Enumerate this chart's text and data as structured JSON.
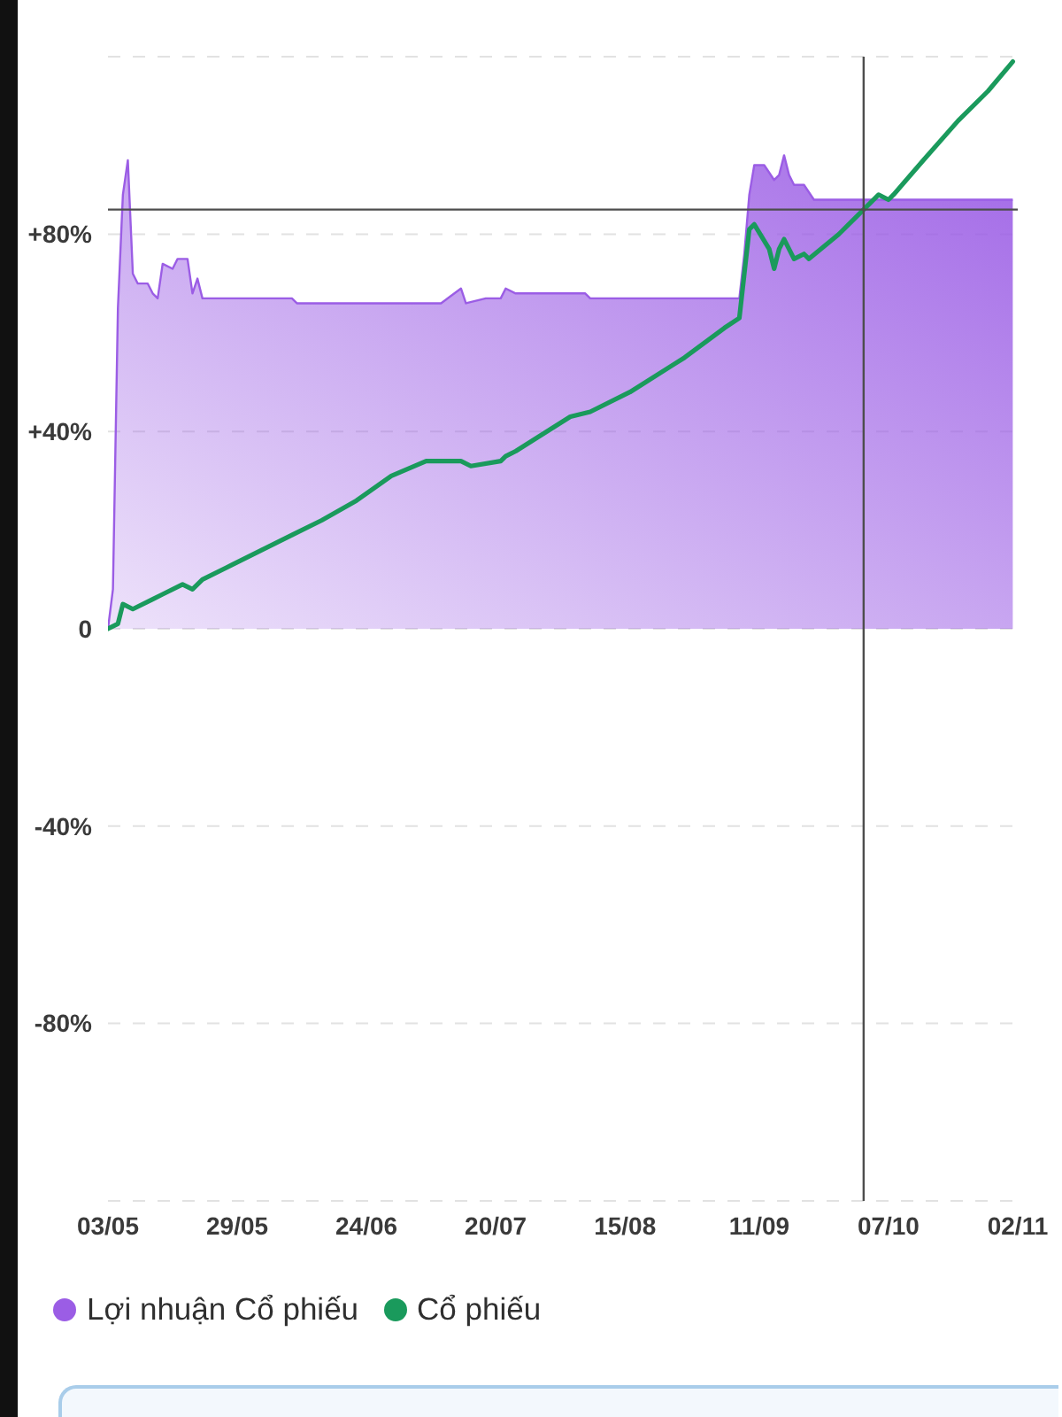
{
  "chart_data": {
    "type": "area",
    "xlim": [
      "--05-03",
      "--11-02"
    ],
    "xticks": [
      {
        "value": "--05-03",
        "label": "03/05"
      },
      {
        "value": "--05-29",
        "label": "29/05"
      },
      {
        "value": "--06-24",
        "label": "24/06"
      },
      {
        "value": "--07-20",
        "label": "20/07"
      },
      {
        "value": "--08-15",
        "label": "15/08"
      },
      {
        "value": "--09-11",
        "label": "11/09"
      },
      {
        "value": "--10-07",
        "label": "07/10"
      },
      {
        "value": "--11-02",
        "label": "02/11"
      }
    ],
    "ylim": [
      -116,
      116
    ],
    "yticks": [
      {
        "value": -80,
        "label": "-80%"
      },
      {
        "value": -40,
        "label": "-40%"
      },
      {
        "value": 0,
        "label": "0"
      },
      {
        "value": 40,
        "label": "+40%"
      },
      {
        "value": 80,
        "label": "+80%"
      }
    ],
    "grid": "y",
    "legend": "bottom left",
    "series": [
      {
        "name": "Lợi nhuận Cổ phiếu",
        "color": "#9b5de5",
        "x": [
          "--05-03",
          "--05-04",
          "--05-05",
          "--05-06",
          "--05-07",
          "--05-08",
          "--05-09",
          "--05-11",
          "--05-12",
          "--05-13",
          "--05-14",
          "--05-16",
          "--05-17",
          "--05-19",
          "--05-20",
          "--05-21",
          "--05-22",
          "--06-09",
          "--06-10",
          "--07-09",
          "--07-13",
          "--07-14",
          "--07-18",
          "--07-21",
          "--07-22",
          "--07-24",
          "--08-07",
          "--08-08",
          "--09-07",
          "--09-08",
          "--09-09",
          "--09-10",
          "--09-12",
          "--09-14",
          "--09-15",
          "--09-16",
          "--09-17",
          "--09-18",
          "--09-20",
          "--09-22",
          "--11-01"
        ],
        "values": [
          0,
          8,
          65,
          88,
          95,
          72,
          70,
          70,
          68,
          67,
          74,
          73,
          75,
          75,
          68,
          71,
          67,
          67,
          66,
          66,
          69,
          66,
          67,
          67,
          69,
          68,
          68,
          67,
          67,
          76,
          88,
          94,
          94,
          91,
          92,
          96,
          92,
          90,
          90,
          87,
          87
        ]
      },
      {
        "name": "Cổ phiếu",
        "type": "line",
        "color": "#1a9a5c",
        "x": [
          "--05-03",
          "--05-05",
          "--05-06",
          "--05-08",
          "--05-12",
          "--05-14",
          "--05-18",
          "--05-20",
          "--05-22",
          "--05-28",
          "--06-03",
          "--06-09",
          "--06-15",
          "--06-22",
          "--06-29",
          "--07-06",
          "--07-13",
          "--07-15",
          "--07-21",
          "--07-22",
          "--07-24",
          "--08-04",
          "--08-08",
          "--08-16",
          "--08-27",
          "--09-04",
          "--09-07",
          "--09-08",
          "--09-09",
          "--09-10",
          "--09-13",
          "--09-14",
          "--09-15",
          "--09-16",
          "--09-18",
          "--09-20",
          "--09-21",
          "--09-27",
          "--10-02",
          "--10-05",
          "--10-07",
          "--10-08",
          "--10-14",
          "--10-21",
          "--10-27",
          "--11-01"
        ],
        "values": [
          0,
          1,
          5,
          4,
          6,
          7,
          9,
          8,
          10,
          13,
          16,
          19,
          22,
          26,
          31,
          34,
          34,
          33,
          34,
          35,
          36,
          43,
          44,
          48,
          55,
          61,
          63,
          72,
          81,
          82,
          77,
          73,
          77,
          79,
          75,
          76,
          75,
          80,
          85,
          88,
          87,
          88,
          95,
          103,
          109,
          115
        ]
      }
    ],
    "ref_lines": [
      {
        "axis": "x",
        "value": "--10-02",
        "color": "#4d4d4d"
      },
      {
        "axis": "y",
        "value": 85,
        "color": "#4d4d4d"
      }
    ]
  }
}
